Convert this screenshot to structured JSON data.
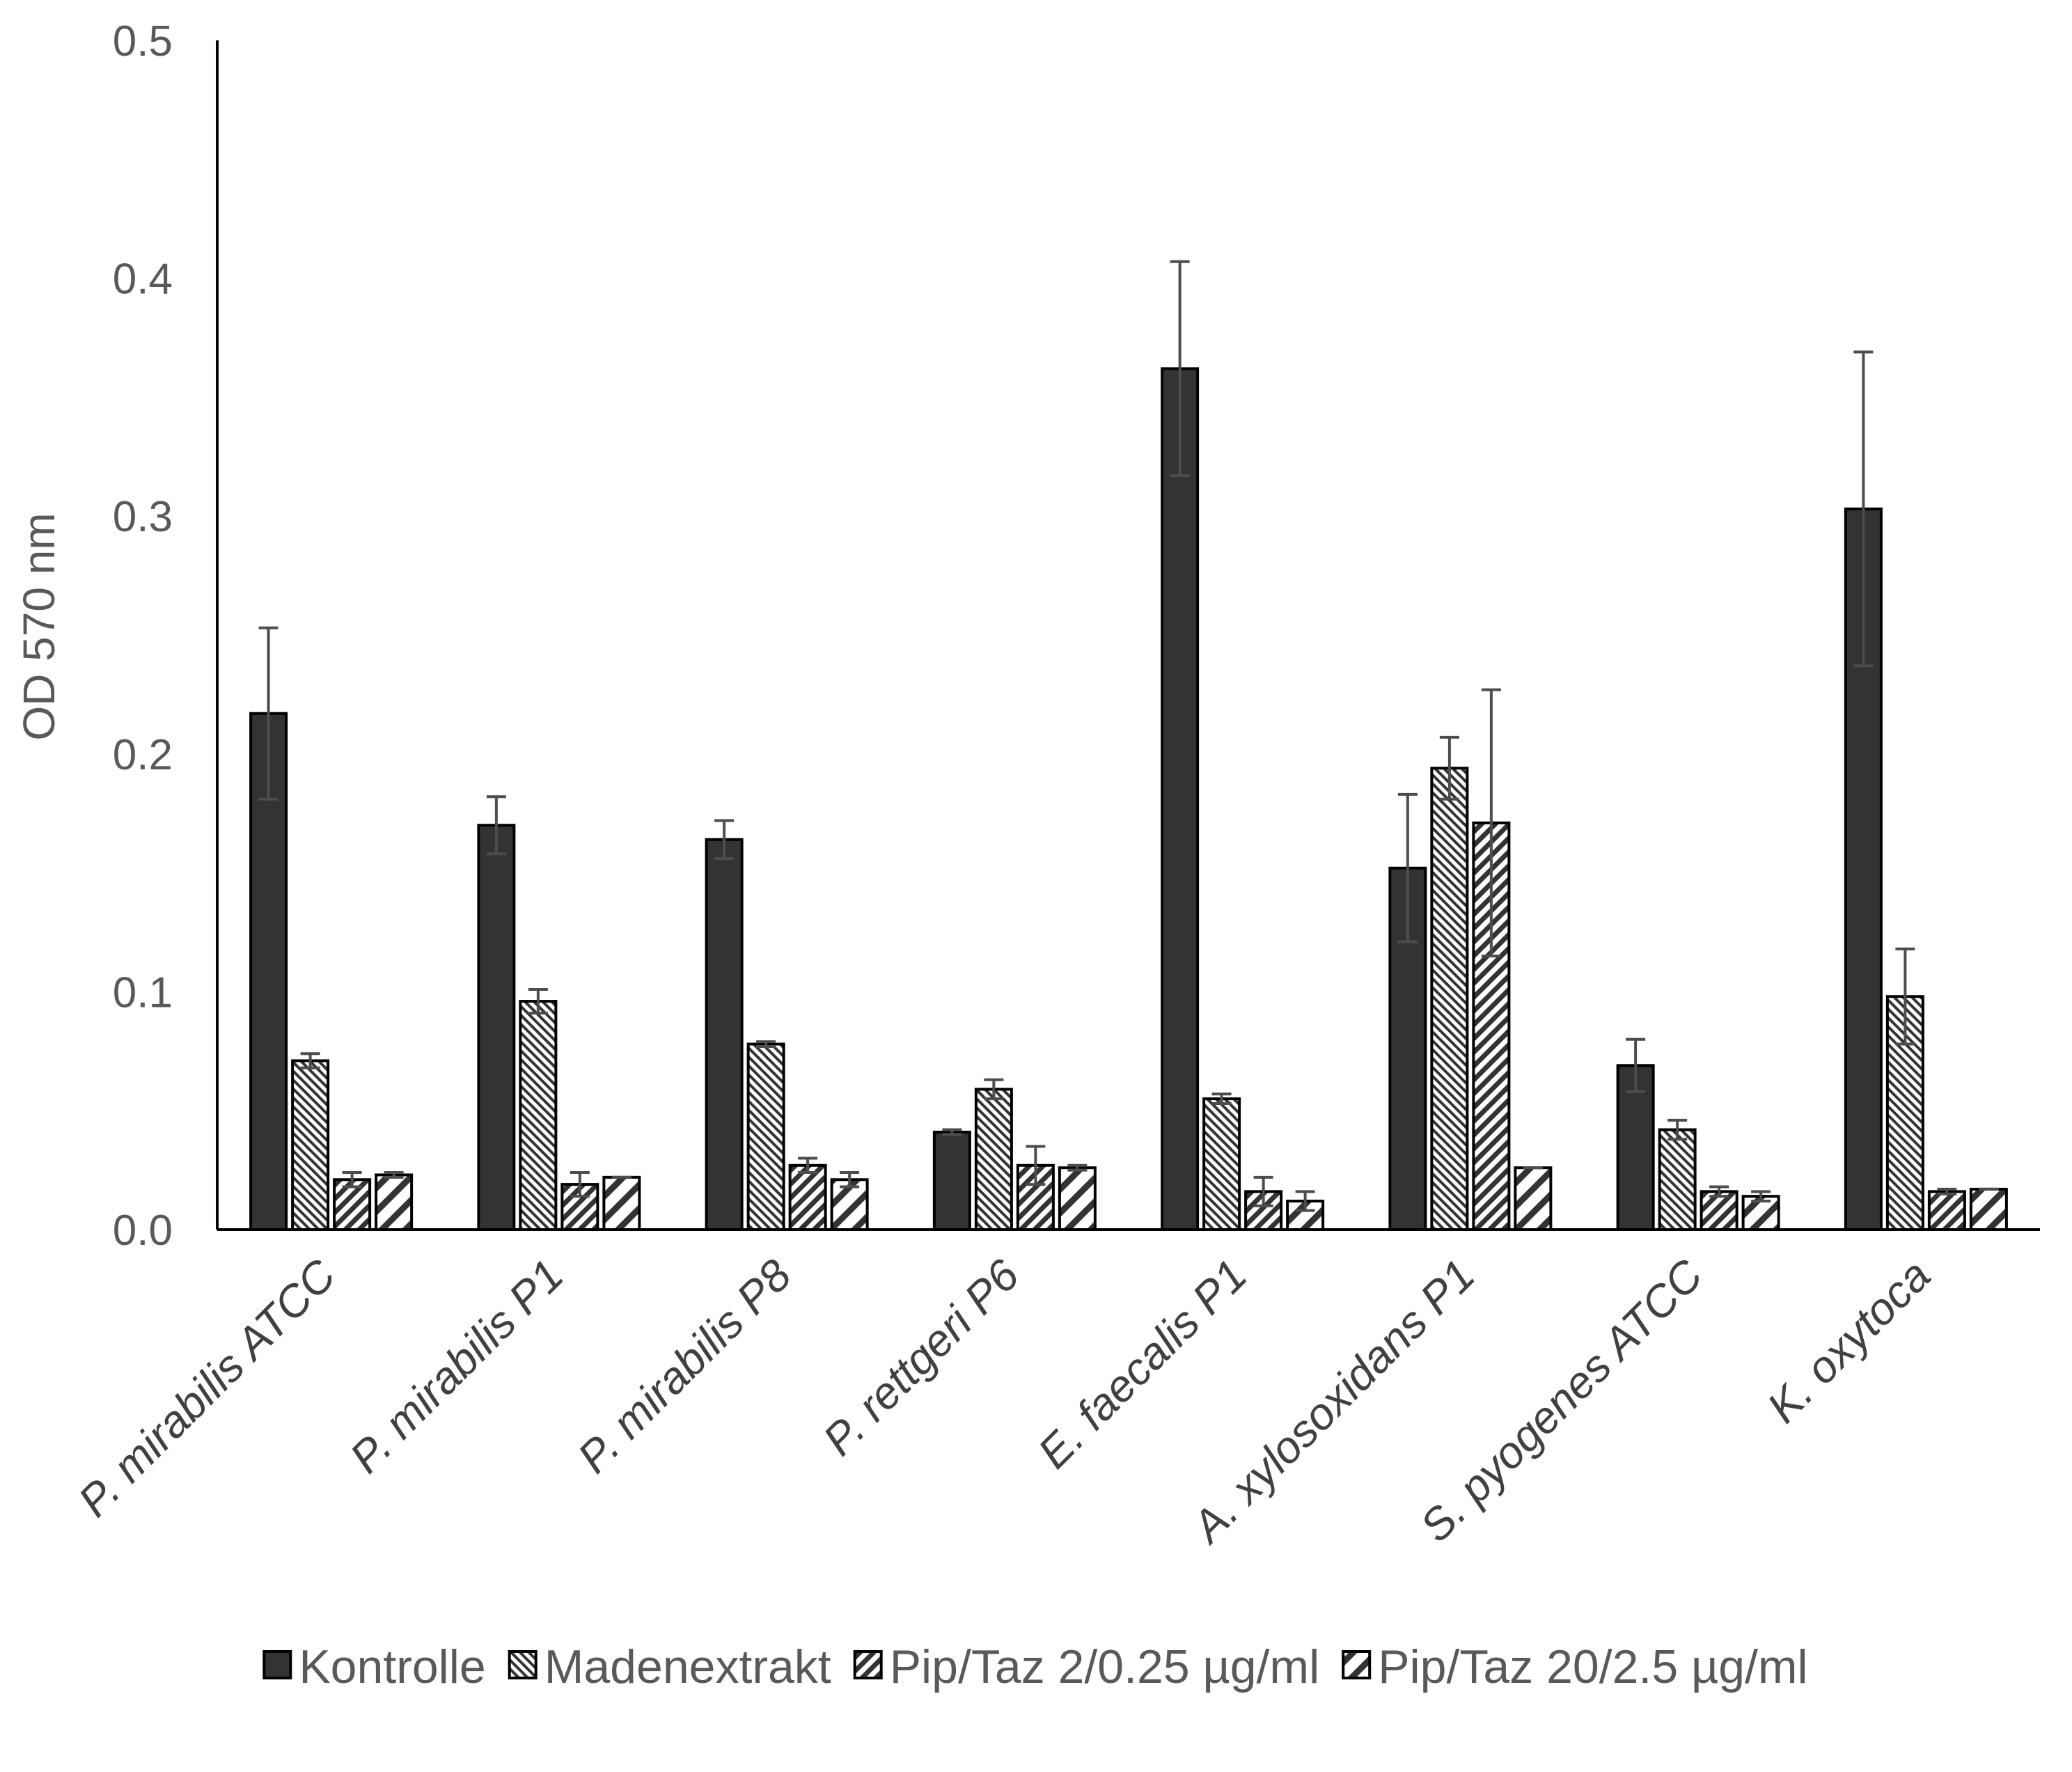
{
  "chart_data": {
    "type": "bar",
    "title": "",
    "xlabel": "",
    "ylabel": "OD 570 nm",
    "ylim": [
      0,
      0.5
    ],
    "yticks": [
      "0.0",
      "0.1",
      "0.2",
      "0.3",
      "0.4",
      "0.5"
    ],
    "grid": false,
    "legend_position": "bottom",
    "categories": [
      "P. mirabilis ATCC",
      "P. mirabilis P1",
      "P. mirabilis P8",
      "P. rettgeri P6",
      "E. faecalis P1",
      "A. xylosoxidans P1",
      "S. pyogenes ATCC",
      "K. oxytoca"
    ],
    "series": [
      {
        "name": "Kontrolle",
        "pattern": "solid",
        "color": "#333333",
        "values": [
          0.217,
          0.17,
          0.164,
          0.041,
          0.362,
          0.152,
          0.069,
          0.303
        ],
        "errors": [
          0.036,
          0.012,
          0.008,
          0.001,
          0.045,
          0.031,
          0.011,
          0.066
        ]
      },
      {
        "name": "Madenextrakt",
        "pattern": "fine-back-diagonal",
        "color": "#333333",
        "values": [
          0.071,
          0.096,
          0.078,
          0.059,
          0.055,
          0.194,
          0.042,
          0.098
        ],
        "errors": [
          0.003,
          0.005,
          0.001,
          0.004,
          0.002,
          0.013,
          0.004,
          0.02
        ]
      },
      {
        "name": "Pip/Taz 2/0.25 µg/ml",
        "pattern": "medium-forward-diagonal",
        "color": "#333333",
        "values": [
          0.021,
          0.019,
          0.027,
          0.027,
          0.016,
          0.171,
          0.016,
          0.016
        ],
        "errors": [
          0.003,
          0.005,
          0.003,
          0.008,
          0.006,
          0.056,
          0.002,
          0.001
        ]
      },
      {
        "name": "Pip/Taz 20/2.5 µg/ml",
        "pattern": "wide-forward-diagonal",
        "color": "#333333",
        "values": [
          0.023,
          0.022,
          0.021,
          0.026,
          0.012,
          0.026,
          0.014,
          0.017
        ],
        "errors": [
          0.001,
          0.0,
          0.003,
          0.001,
          0.004,
          0.0,
          0.002,
          0.0
        ]
      }
    ]
  }
}
